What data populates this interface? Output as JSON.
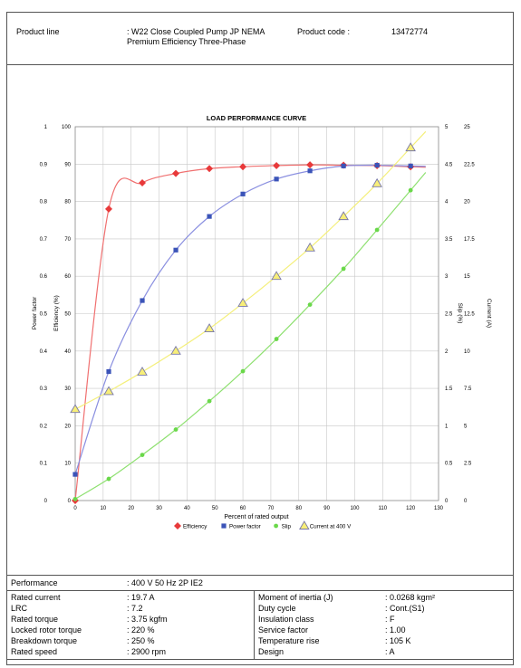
{
  "header": {
    "product_line_label": "Product line",
    "product_line_value": ": W22 Close Coupled Pump JP NEMA Premium Efficiency Three-Phase",
    "product_code_label": "Product code :",
    "product_code_value": "13472774"
  },
  "chart_data": {
    "type": "line",
    "title": "LOAD PERFORMANCE CURVE",
    "xlabel": "Percent of rated output",
    "xlim": [
      0,
      130
    ],
    "x_ticks": [
      "0",
      "10",
      "20",
      "30",
      "40",
      "50",
      "60",
      "70",
      "80",
      "90",
      "100",
      "110",
      "120",
      "130"
    ],
    "left_axis_pf": {
      "label": "Power factor",
      "ticks": [
        "0",
        "0.1",
        "0.2",
        "0.3",
        "0.4",
        "0.5",
        "0.6",
        "0.7",
        "0.8",
        "0.9",
        "1"
      ],
      "range": [
        0,
        1
      ]
    },
    "left_axis_eff": {
      "label": "Efficiency (%)",
      "ticks": [
        "0",
        "10",
        "20",
        "30",
        "40",
        "50",
        "60",
        "70",
        "80",
        "90",
        "100"
      ],
      "range": [
        0,
        100
      ]
    },
    "right_axis_slip": {
      "label": "Slip (%)",
      "ticks": [
        "0",
        "0.5",
        "1",
        "1.5",
        "2",
        "2.5",
        "3",
        "3.5",
        "4",
        "4.5",
        "5"
      ],
      "range": [
        0,
        5
      ]
    },
    "right_axis_current": {
      "label": "Current (A)",
      "ticks": [
        "0",
        "2.5",
        "5",
        "7.5",
        "10",
        "12.5",
        "15",
        "17.5",
        "20",
        "22.5",
        "25"
      ],
      "range": [
        0,
        25
      ]
    },
    "grid": true,
    "legend_position": "bottom",
    "series": [
      {
        "name": "Efficiency",
        "axis": "eff",
        "color": "#e8393a",
        "line": "#f07070",
        "marker": "diamond",
        "x": [
          0,
          12,
          24,
          36,
          48,
          60,
          72,
          84,
          96,
          108,
          120
        ],
        "y": [
          0,
          78,
          85,
          87.5,
          88.8,
          89.3,
          89.6,
          89.8,
          89.7,
          89.6,
          89.3
        ]
      },
      {
        "name": "Power factor",
        "axis": "pf",
        "color": "#3b54b8",
        "line": "#8a8fe0",
        "marker": "square",
        "x": [
          0,
          12,
          24,
          36,
          48,
          60,
          72,
          84,
          96,
          108,
          120
        ],
        "y": [
          0.07,
          0.345,
          0.535,
          0.67,
          0.76,
          0.82,
          0.86,
          0.882,
          0.895,
          0.897,
          0.895
        ]
      },
      {
        "name": "Slip",
        "axis": "slip",
        "color": "#6ad84a",
        "line": "#8ee070",
        "marker": "circle",
        "x": [
          0,
          12,
          24,
          36,
          48,
          60,
          72,
          84,
          96,
          108,
          120
        ],
        "y": [
          0.02,
          0.29,
          0.61,
          0.95,
          1.33,
          1.73,
          2.16,
          2.62,
          3.1,
          3.62,
          4.15
        ]
      },
      {
        "name": "Current at 400 V",
        "axis": "current",
        "color": "#7777aa",
        "line": "#f4ef7a",
        "marker": "triangle",
        "x": [
          0,
          12,
          24,
          36,
          48,
          60,
          72,
          84,
          96,
          108,
          120
        ],
        "y": [
          6.1,
          7.3,
          8.6,
          10.0,
          11.5,
          13.2,
          15.0,
          16.9,
          19.0,
          21.2,
          23.6
        ]
      }
    ]
  },
  "performance": {
    "label": "Performance",
    "value": ": 400 V 50 Hz 2P IE2"
  },
  "specs_left": [
    {
      "label": "Rated current",
      "value": ": 19.7 A"
    },
    {
      "label": "LRC",
      "value": ": 7.2"
    },
    {
      "label": "Rated torque",
      "value": ": 3.75 kgfm"
    },
    {
      "label": "Locked rotor torque",
      "value": ": 220 %"
    },
    {
      "label": "Breakdown torque",
      "value": ": 250 %"
    },
    {
      "label": "Rated speed",
      "value": ": 2900 rpm"
    }
  ],
  "specs_right": [
    {
      "label": "Moment of inertia (J)",
      "value": ": 0.0268 kgm²"
    },
    {
      "label": "Duty cycle",
      "value": ": Cont.(S1)"
    },
    {
      "label": "Insulation class",
      "value": ": F"
    },
    {
      "label": "Service factor",
      "value": ": 1.00"
    },
    {
      "label": "Temperature rise",
      "value": ": 105 K"
    },
    {
      "label": "Design",
      "value": ": A"
    }
  ]
}
